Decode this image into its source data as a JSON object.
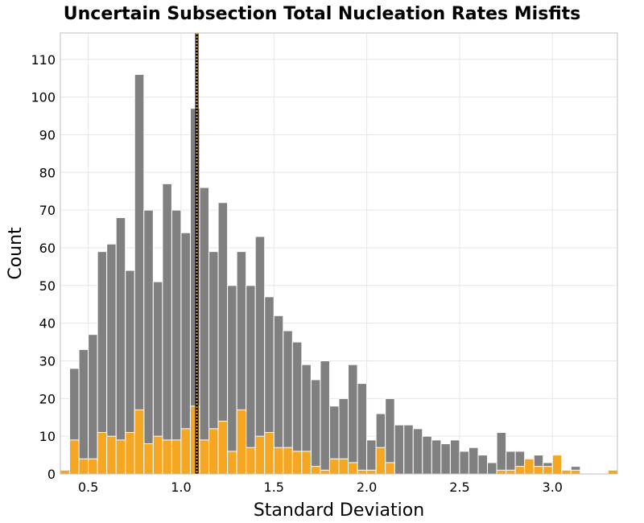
{
  "chart_data": {
    "type": "bar",
    "title": "Uncertain Subsection Total Nucleation Rates Misfits",
    "xlabel": "Standard Deviation",
    "ylabel": "Count",
    "xlim": [
      0.35,
      3.35
    ],
    "ylim": [
      0,
      117
    ],
    "grid": true,
    "bin_width": 0.05,
    "xticks": [
      0.5,
      1.0,
      1.5,
      2.0,
      2.5,
      3.0
    ],
    "xtick_labels": [
      "0.5",
      "1.0",
      "1.5",
      "2.0",
      "2.5",
      "3.0"
    ],
    "yticks": [
      0,
      10,
      20,
      30,
      40,
      50,
      60,
      70,
      80,
      90,
      100,
      110
    ],
    "ytick_labels": [
      "0",
      "10",
      "20",
      "30",
      "40",
      "50",
      "60",
      "70",
      "80",
      "90",
      "100",
      "110"
    ],
    "vertical_line_x": 1.085,
    "series": [
      {
        "color": "#808080",
        "x": [
          0.35,
          0.4,
          0.45,
          0.5,
          0.55,
          0.6,
          0.65,
          0.7,
          0.75,
          0.8,
          0.85,
          0.9,
          0.95,
          1.0,
          1.05,
          1.1,
          1.15,
          1.2,
          1.25,
          1.3,
          1.35,
          1.4,
          1.45,
          1.5,
          1.55,
          1.6,
          1.65,
          1.7,
          1.75,
          1.8,
          1.85,
          1.9,
          1.95,
          2.0,
          2.05,
          2.1,
          2.15,
          2.2,
          2.25,
          2.3,
          2.35,
          2.4,
          2.45,
          2.5,
          2.55,
          2.6,
          2.65,
          2.7,
          2.75,
          2.8,
          2.85,
          2.9,
          2.95,
          3.0,
          3.05,
          3.1,
          3.15,
          3.2,
          3.25,
          3.3
        ],
        "values": [
          0,
          28,
          33,
          37,
          59,
          61,
          68,
          54,
          106,
          70,
          51,
          77,
          70,
          64,
          97,
          76,
          59,
          72,
          50,
          59,
          50,
          63,
          47,
          42,
          38,
          35,
          29,
          25,
          30,
          18,
          20,
          29,
          24,
          9,
          16,
          20,
          13,
          13,
          12,
          10,
          9,
          8,
          9,
          6,
          7,
          5,
          3,
          11,
          6,
          6,
          3,
          5,
          3,
          5,
          1,
          2,
          0,
          0,
          0,
          0
        ]
      },
      {
        "color": "#f5a623",
        "x": [
          0.35,
          0.4,
          0.45,
          0.5,
          0.55,
          0.6,
          0.65,
          0.7,
          0.75,
          0.8,
          0.85,
          0.9,
          0.95,
          1.0,
          1.05,
          1.1,
          1.15,
          1.2,
          1.25,
          1.3,
          1.35,
          1.4,
          1.45,
          1.5,
          1.55,
          1.6,
          1.65,
          1.7,
          1.75,
          1.8,
          1.85,
          1.9,
          1.95,
          2.0,
          2.05,
          2.1,
          2.15,
          2.2,
          2.25,
          2.3,
          2.35,
          2.4,
          2.45,
          2.5,
          2.55,
          2.6,
          2.65,
          2.7,
          2.75,
          2.8,
          2.85,
          2.9,
          2.95,
          3.0,
          3.05,
          3.1,
          3.15,
          3.2,
          3.25,
          3.3
        ],
        "values": [
          1,
          9,
          4,
          4,
          11,
          10,
          9,
          11,
          17,
          8,
          10,
          9,
          9,
          12,
          18,
          9,
          12,
          14,
          6,
          17,
          7,
          10,
          11,
          7,
          7,
          6,
          6,
          2,
          1,
          4,
          4,
          3,
          1,
          1,
          7,
          3,
          0,
          0,
          0,
          0,
          0,
          0,
          0,
          0,
          0,
          0,
          0,
          1,
          1,
          2,
          4,
          2,
          2,
          5,
          1,
          1,
          0,
          0,
          0,
          1
        ]
      }
    ]
  }
}
